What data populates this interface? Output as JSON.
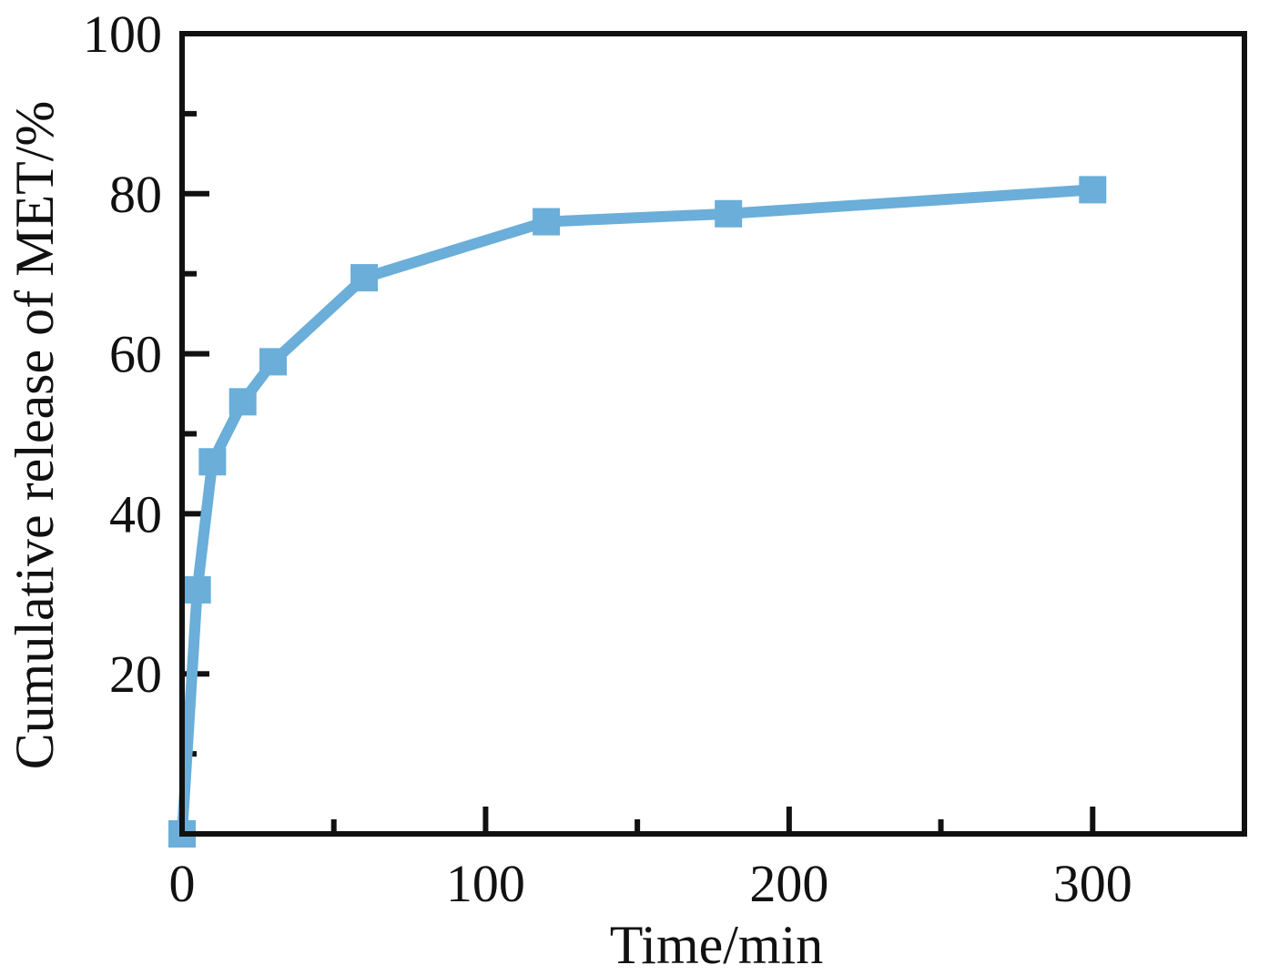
{
  "chart_data": {
    "type": "line",
    "title": "",
    "xlabel": "Time/min",
    "ylabel": "Cumulative release of MET/%",
    "xlim": [
      0,
      350
    ],
    "ylim": [
      0,
      100
    ],
    "x_ticks": [
      0,
      100,
      200,
      300
    ],
    "x_minor_ticks": [
      50,
      150,
      250
    ],
    "y_ticks": [
      20,
      40,
      60,
      80,
      100
    ],
    "y_minor_ticks": [
      10,
      30,
      50,
      70,
      90
    ],
    "grid": false,
    "legend": "none",
    "series": [
      {
        "color": "#6aaed9",
        "marker": "square",
        "x": [
          0,
          5,
          10,
          20,
          30,
          60,
          120,
          180,
          300
        ],
        "y": [
          0,
          30.5,
          46.5,
          54,
          59,
          69.5,
          76.5,
          77.5,
          80.5
        ]
      }
    ]
  }
}
